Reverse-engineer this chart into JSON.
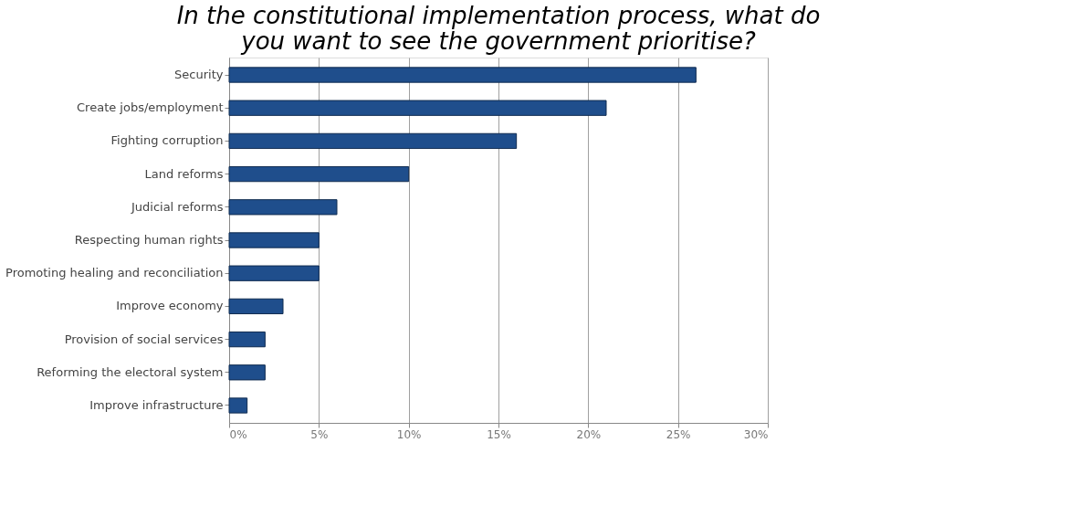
{
  "chart_data": {
    "type": "bar",
    "orientation": "horizontal",
    "title": [
      "In the constitutional implementation process, what do",
      "you want to see the government prioritise?"
    ],
    "categories": [
      "Security",
      "Create jobs/employment",
      "Fighting corruption",
      "Land reforms",
      "Judicial reforms",
      "Respecting human rights",
      "Promoting healing and reconciliation",
      "Improve economy",
      "Provision of social services",
      "Reforming the electoral system",
      "Improve infrastructure"
    ],
    "values": [
      26,
      21,
      16,
      10,
      6,
      5,
      5,
      3,
      2,
      2,
      1
    ],
    "color": "#1f4e8c",
    "xlim": [
      0,
      30
    ],
    "xticks": [
      {
        "value": 0,
        "label": "0%"
      },
      {
        "value": 5,
        "label": "5%"
      },
      {
        "value": 10,
        "label": "10%"
      },
      {
        "value": 15,
        "label": "15%"
      },
      {
        "value": 20,
        "label": "20%"
      },
      {
        "value": 25,
        "label": "25%"
      },
      {
        "value": 30,
        "label": "30%"
      }
    ],
    "grid": "x"
  }
}
